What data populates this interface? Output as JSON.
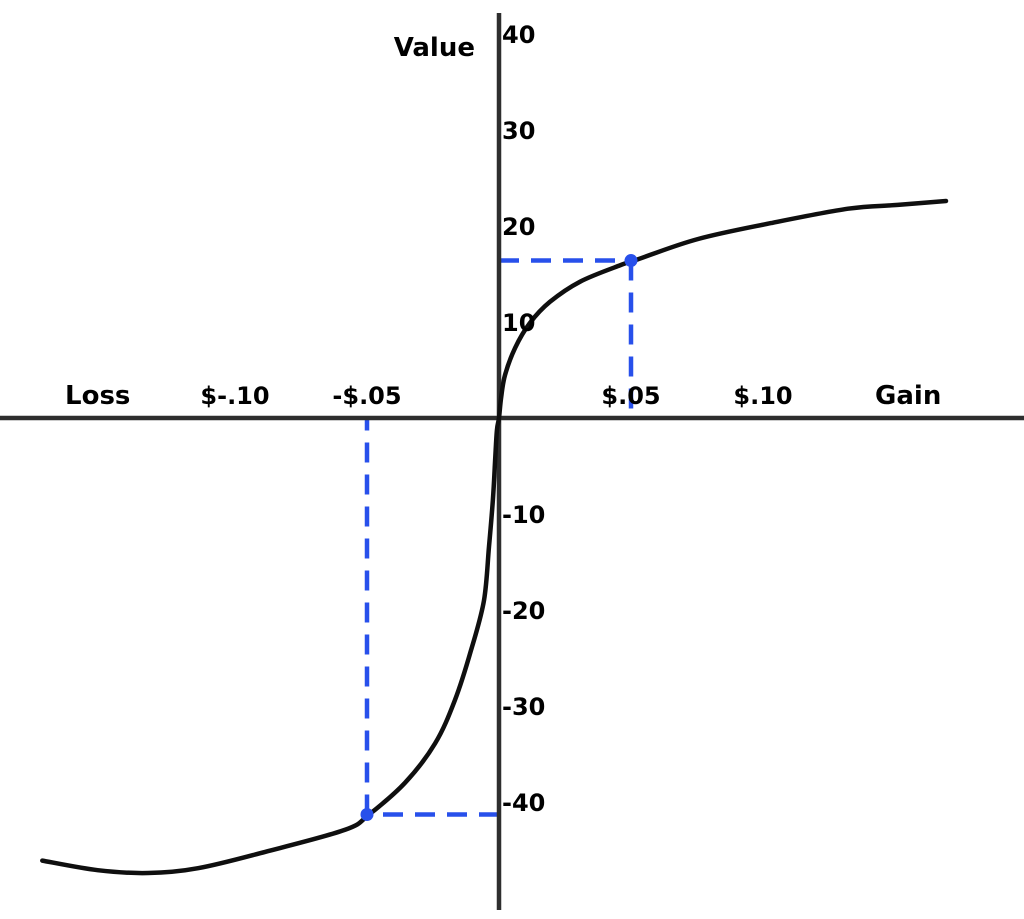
{
  "chart_data": {
    "type": "line",
    "description": "Prospect theory value function: S-shaped curve through the origin, concave for gains and convex (steeper) for losses, with blue dashed reference lines showing that a $.05 gain maps to a value of about +16 while a $.05 loss maps to a value of about -41",
    "ylabel": "Value",
    "x_axis_end_labels": [
      {
        "label": "Loss",
        "x": -0.152
      },
      {
        "label": "Gain",
        "x": 0.155
      }
    ],
    "x_ticks": [
      {
        "label": "$-.10",
        "x": -0.1
      },
      {
        "label": "-$.05",
        "x": -0.05
      },
      {
        "label": "$.05",
        "x": 0.05
      },
      {
        "label": "$.10",
        "x": 0.1
      }
    ],
    "y_ticks": [
      {
        "label": "40",
        "value": 40
      },
      {
        "label": "30",
        "value": 30
      },
      {
        "label": "20",
        "value": 20
      },
      {
        "label": "10",
        "value": 10
      },
      {
        "label": "-10",
        "value": -10
      },
      {
        "label": "-20",
        "value": -20
      },
      {
        "label": "-30",
        "value": -30
      },
      {
        "label": "-40",
        "value": -40
      }
    ],
    "reference_points": [
      {
        "x": 0.05,
        "value": 16.4
      },
      {
        "x": -0.05,
        "value": -41.3
      }
    ],
    "curve": [
      [
        -0.173,
        -46.1
      ],
      [
        -0.152,
        -47.1
      ],
      [
        -0.133,
        -47.4
      ],
      [
        -0.114,
        -46.9
      ],
      [
        -0.0886,
        -45.2
      ],
      [
        -0.0583,
        -42.9
      ],
      [
        -0.0492,
        -41.3
      ],
      [
        -0.0356,
        -38.0
      ],
      [
        -0.0242,
        -33.9
      ],
      [
        -0.0167,
        -29.4
      ],
      [
        -0.0106,
        -24.2
      ],
      [
        -0.0057,
        -19.0
      ],
      [
        -0.0038,
        -13.4
      ],
      [
        -0.0023,
        -8.5
      ],
      [
        -0.0015,
        -4.6
      ],
      [
        -0.0008,
        -1.3
      ],
      [
        0.0,
        0.0
      ],
      [
        0.0008,
        2.1
      ],
      [
        0.0023,
        4.5
      ],
      [
        0.0061,
        7.3
      ],
      [
        0.0117,
        9.9
      ],
      [
        0.0193,
        12.1
      ],
      [
        0.0307,
        14.2
      ],
      [
        0.0458,
        15.9
      ],
      [
        0.0523,
        16.5
      ],
      [
        0.0754,
        18.65
      ],
      [
        0.103,
        20.3
      ],
      [
        0.1322,
        21.8
      ],
      [
        0.1511,
        22.2
      ],
      [
        0.1693,
        22.6
      ]
    ],
    "x_range_dollars": [
      -0.173,
      0.169
    ],
    "y_range": [
      -48,
      40
    ],
    "grid": false,
    "legend": "none",
    "colors": {
      "curve": "#0f0f0f",
      "axis": "#2e2e2e",
      "reference": "#2850eb",
      "text": "#000000",
      "background": "#ffffff"
    }
  }
}
